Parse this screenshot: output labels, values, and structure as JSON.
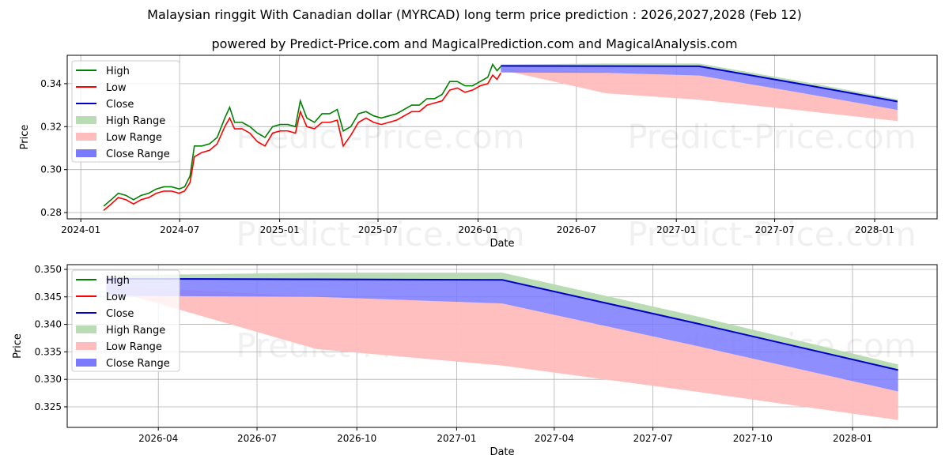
{
  "title": "Malaysian ringgit With Canadian dollar (MYRCAD) long term price prediction : 2026,2027,2028 (Feb 12)",
  "subtitle": "powered by Predict-Price.com and MagicalPrediction.com and MagicalAnalysis.com",
  "watermark": "Predict-Price.com",
  "colors": {
    "high": "#008000",
    "low": "#ff0000",
    "close": "#0000cc",
    "high_range": "#b9dcb4",
    "low_range": "#ffbcbc",
    "close_range": "#7a7aff"
  },
  "legend": [
    "High",
    "Low",
    "Close",
    "High Range",
    "Low Range",
    "Close Range"
  ],
  "chart_data": [
    {
      "type": "line",
      "xlabel": "Date",
      "ylabel": "Price",
      "xlim": [
        "2023-12-07",
        "2028-04-25"
      ],
      "ylim": [
        0.2771,
        0.3532
      ],
      "xticks": [
        "2024-01",
        "2024-07",
        "2025-01",
        "2025-07",
        "2026-01",
        "2026-07",
        "2027-01",
        "2027-07",
        "2028-01"
      ],
      "yticks": [
        "0.28",
        "0.30",
        "0.32",
        "0.34"
      ],
      "grid": true,
      "legend_position": "top-left",
      "history": [
        [
          "2024-02-12",
          0.283,
          0.281
        ],
        [
          "2024-02-26",
          0.286,
          0.284
        ],
        [
          "2024-03-10",
          0.289,
          0.287
        ],
        [
          "2024-03-24",
          0.288,
          0.286
        ],
        [
          "2024-04-07",
          0.286,
          0.284
        ],
        [
          "2024-04-21",
          0.288,
          0.286
        ],
        [
          "2024-05-05",
          0.289,
          0.287
        ],
        [
          "2024-05-19",
          0.291,
          0.289
        ],
        [
          "2024-06-02",
          0.292,
          0.29
        ],
        [
          "2024-06-16",
          0.292,
          0.29
        ],
        [
          "2024-06-30",
          0.291,
          0.289
        ],
        [
          "2024-07-10",
          0.292,
          0.29
        ],
        [
          "2024-07-20",
          0.297,
          0.294
        ],
        [
          "2024-07-28",
          0.311,
          0.306
        ],
        [
          "2024-08-11",
          0.311,
          0.308
        ],
        [
          "2024-08-25",
          0.312,
          0.309
        ],
        [
          "2024-09-08",
          0.315,
          0.312
        ],
        [
          "2024-09-22",
          0.324,
          0.32
        ],
        [
          "2024-10-01",
          0.329,
          0.324
        ],
        [
          "2024-10-10",
          0.322,
          0.319
        ],
        [
          "2024-10-24",
          0.322,
          0.319
        ],
        [
          "2024-11-07",
          0.32,
          0.317
        ],
        [
          "2024-11-21",
          0.317,
          0.313
        ],
        [
          "2024-12-05",
          0.315,
          0.311
        ],
        [
          "2024-12-19",
          0.32,
          0.317
        ],
        [
          "2025-01-02",
          0.321,
          0.318
        ],
        [
          "2025-01-16",
          0.321,
          0.318
        ],
        [
          "2025-01-30",
          0.32,
          0.317
        ],
        [
          "2025-02-08",
          0.332,
          0.327
        ],
        [
          "2025-02-20",
          0.324,
          0.32
        ],
        [
          "2025-03-06",
          0.322,
          0.319
        ],
        [
          "2025-03-20",
          0.326,
          0.322
        ],
        [
          "2025-04-03",
          0.326,
          0.322
        ],
        [
          "2025-04-17",
          0.328,
          0.323
        ],
        [
          "2025-04-28",
          0.318,
          0.311
        ],
        [
          "2025-05-12",
          0.32,
          0.316
        ],
        [
          "2025-05-26",
          0.326,
          0.322
        ],
        [
          "2025-06-09",
          0.327,
          0.324
        ],
        [
          "2025-06-23",
          0.325,
          0.322
        ],
        [
          "2025-07-07",
          0.324,
          0.321
        ],
        [
          "2025-07-21",
          0.325,
          0.322
        ],
        [
          "2025-08-04",
          0.326,
          0.323
        ],
        [
          "2025-08-18",
          0.328,
          0.325
        ],
        [
          "2025-09-01",
          0.33,
          0.327
        ],
        [
          "2025-09-15",
          0.33,
          0.327
        ],
        [
          "2025-09-29",
          0.333,
          0.33
        ],
        [
          "2025-10-13",
          0.333,
          0.331
        ],
        [
          "2025-10-27",
          0.335,
          0.332
        ],
        [
          "2025-11-10",
          0.341,
          0.337
        ],
        [
          "2025-11-24",
          0.341,
          0.338
        ],
        [
          "2025-12-08",
          0.339,
          0.336
        ],
        [
          "2025-12-22",
          0.339,
          0.337
        ],
        [
          "2026-01-05",
          0.341,
          0.339
        ],
        [
          "2026-01-19",
          0.343,
          0.34
        ],
        [
          "2026-01-28",
          0.349,
          0.344
        ],
        [
          "2026-02-05",
          0.346,
          0.342
        ],
        [
          "2026-02-12",
          0.348,
          0.345
        ]
      ]
    },
    {
      "type": "area",
      "xlabel": "Date",
      "ylabel": "Price",
      "xlim": [
        "2026-01-07",
        "2028-03-19"
      ],
      "ylim": [
        0.32126,
        0.35086
      ],
      "xticks": [
        "2026-04",
        "2026-07",
        "2026-10",
        "2027-01",
        "2027-04",
        "2027-07",
        "2027-10",
        "2028-01"
      ],
      "yticks": [
        "0.325",
        "0.330",
        "0.335",
        "0.340",
        "0.345",
        "0.350"
      ],
      "grid": true,
      "legend_position": "top-left",
      "forecast": {
        "dates": [
          "2026-02-12",
          "2026-08-25",
          "2027-02-12",
          "2027-08-12",
          "2028-02-12"
        ],
        "high_range_top": [
          0.3489,
          0.3494,
          0.3494,
          0.3414,
          0.3327
        ],
        "close": [
          0.3483,
          0.3482,
          0.3481,
          0.3401,
          0.3317
        ],
        "close_range_bottom": [
          0.3452,
          0.345,
          0.3438,
          0.336,
          0.3278
        ],
        "low_range_top": [
          0.347,
          0.345,
          0.3438,
          0.336,
          0.3278
        ],
        "low_range_bottom": [
          0.3465,
          0.3355,
          0.3325,
          0.3277,
          0.3226
        ]
      }
    }
  ]
}
